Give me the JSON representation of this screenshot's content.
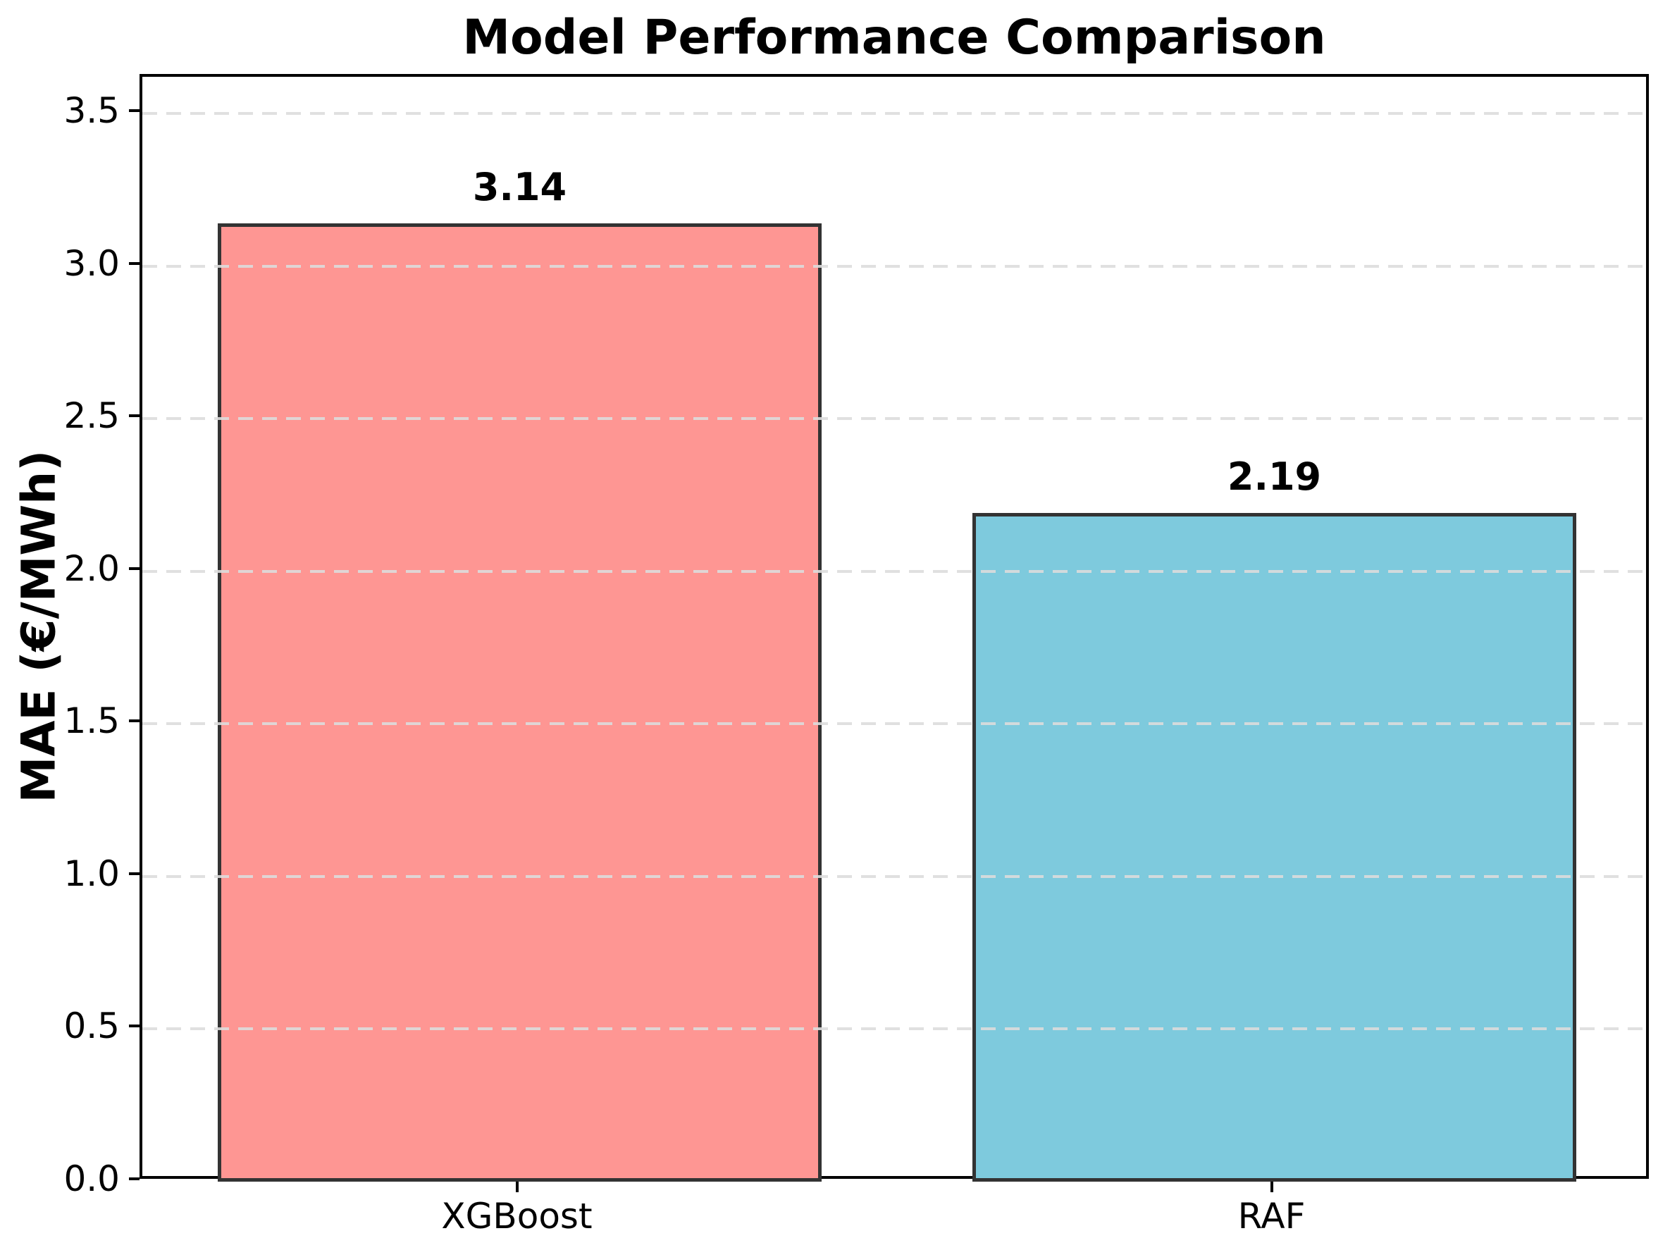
{
  "chart_data": {
    "type": "bar",
    "title": "Model Performance Comparison",
    "xlabel": "",
    "ylabel": "MAE (€/MWh)",
    "categories": [
      "XGBoost",
      "RAF"
    ],
    "values": [
      3.14,
      2.19
    ],
    "value_labels": [
      "3.14",
      "2.19"
    ],
    "bar_colors": [
      "#FE9693",
      "#7ECADD"
    ],
    "bar_edge_color": "#333333",
    "bar_width_fraction": 0.8,
    "ylim": [
      0,
      3.62
    ],
    "yticks": [
      0.0,
      0.5,
      1.0,
      1.5,
      2.0,
      2.5,
      3.0,
      3.5
    ],
    "ytick_labels": [
      "0.0",
      "0.5",
      "1.0",
      "1.5",
      "2.0",
      "2.5",
      "3.0",
      "3.5"
    ],
    "grid": "horizontal dashed, drawn above bars",
    "grid_color": "#DCDCDC",
    "legend": "none",
    "background_color": "#FFFFFF"
  }
}
